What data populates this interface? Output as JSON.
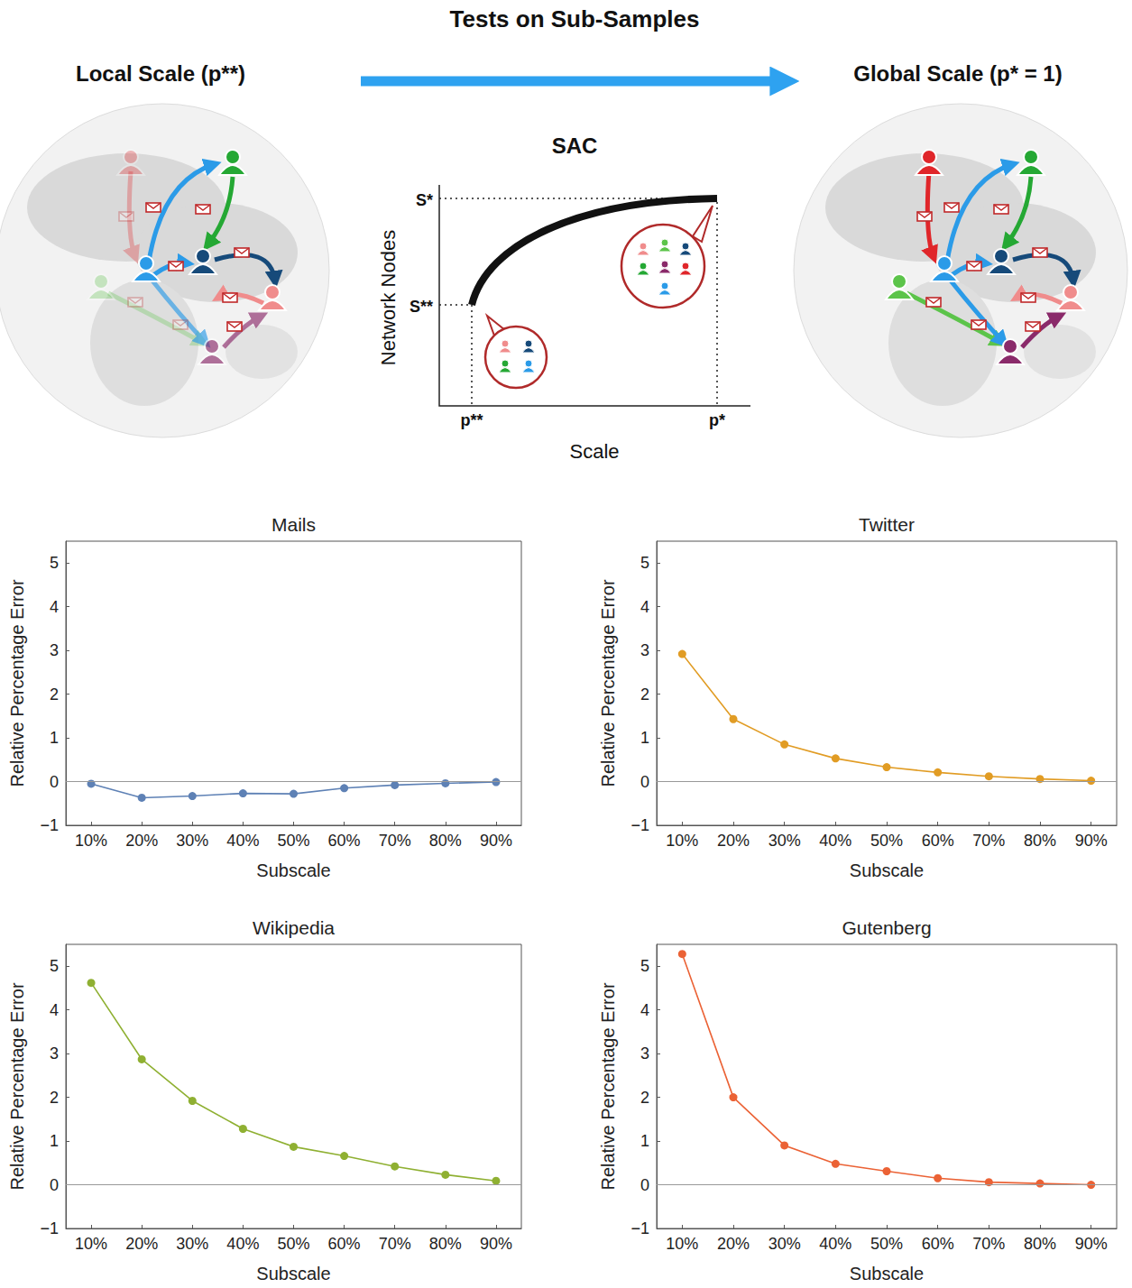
{
  "header": {
    "title": "Tests on Sub-Samples",
    "left_label": "Local Scale (p**)",
    "right_label": "Global Scale (p* = 1)"
  },
  "diagram": {
    "title": "SAC",
    "x_label": "Scale",
    "y_label": "Network Nodes",
    "x_ticks": [
      "p**",
      "p*"
    ],
    "y_ticks": [
      "S**",
      "S*"
    ]
  },
  "chart_data": [
    {
      "type": "line",
      "title": "Mails",
      "x_label": "Subscale",
      "y_label": "Relative Percentage Error",
      "categories": [
        "10%",
        "20%",
        "30%",
        "40%",
        "50%",
        "60%",
        "70%",
        "80%",
        "90%"
      ],
      "values": [
        -0.05,
        -0.37,
        -0.33,
        -0.27,
        -0.28,
        -0.15,
        -0.08,
        -0.04,
        -0.01
      ],
      "color": "#5e81b5",
      "marker": "circle",
      "line_style": "solid",
      "ylim": [
        -1,
        5.5
      ],
      "yticks": [
        {
          "value": -1,
          "label": "−1"
        },
        0,
        1,
        2,
        3,
        4,
        5
      ],
      "baseline": 0,
      "grid": false
    },
    {
      "type": "line",
      "title": "Twitter",
      "x_label": "Subscale",
      "y_label": "Relative Percentage Error",
      "categories": [
        "10%",
        "20%",
        "30%",
        "40%",
        "50%",
        "60%",
        "70%",
        "80%",
        "90%"
      ],
      "values": [
        2.92,
        1.43,
        0.85,
        0.53,
        0.33,
        0.21,
        0.12,
        0.06,
        0.02
      ],
      "color": "#e19c24",
      "marker": "circle",
      "line_style": "solid",
      "ylim": [
        -1,
        5.5
      ],
      "yticks": [
        {
          "value": -1,
          "label": "−1"
        },
        0,
        1,
        2,
        3,
        4,
        5
      ],
      "baseline": 0,
      "grid": false
    },
    {
      "type": "line",
      "title": "Wikipedia",
      "x_label": "Subscale",
      "y_label": "Relative Percentage Error",
      "categories": [
        "10%",
        "20%",
        "30%",
        "40%",
        "50%",
        "60%",
        "70%",
        "80%",
        "90%"
      ],
      "values": [
        4.62,
        2.87,
        1.92,
        1.28,
        0.87,
        0.66,
        0.42,
        0.23,
        0.09
      ],
      "color": "#8fb032",
      "marker": "circle",
      "line_style": "solid",
      "ylim": [
        -1,
        5.5
      ],
      "yticks": [
        {
          "value": -1,
          "label": "−1"
        },
        0,
        1,
        2,
        3,
        4,
        5
      ],
      "baseline": 0,
      "grid": false
    },
    {
      "type": "line",
      "title": "Gutenberg",
      "x_label": "Subscale",
      "y_label": "Relative Percentage Error",
      "categories": [
        "10%",
        "20%",
        "30%",
        "40%",
        "50%",
        "60%",
        "70%",
        "80%",
        "90%"
      ],
      "values": [
        5.28,
        2.0,
        0.9,
        0.48,
        0.31,
        0.15,
        0.06,
        0.03,
        0.0
      ],
      "color": "#eb6235",
      "marker": "circle",
      "line_style": "solid",
      "ylim": [
        -1,
        5.5
      ],
      "yticks": [
        {
          "value": -1,
          "label": "−1"
        },
        0,
        1,
        2,
        3,
        4,
        5
      ],
      "baseline": 0,
      "grid": false
    }
  ]
}
